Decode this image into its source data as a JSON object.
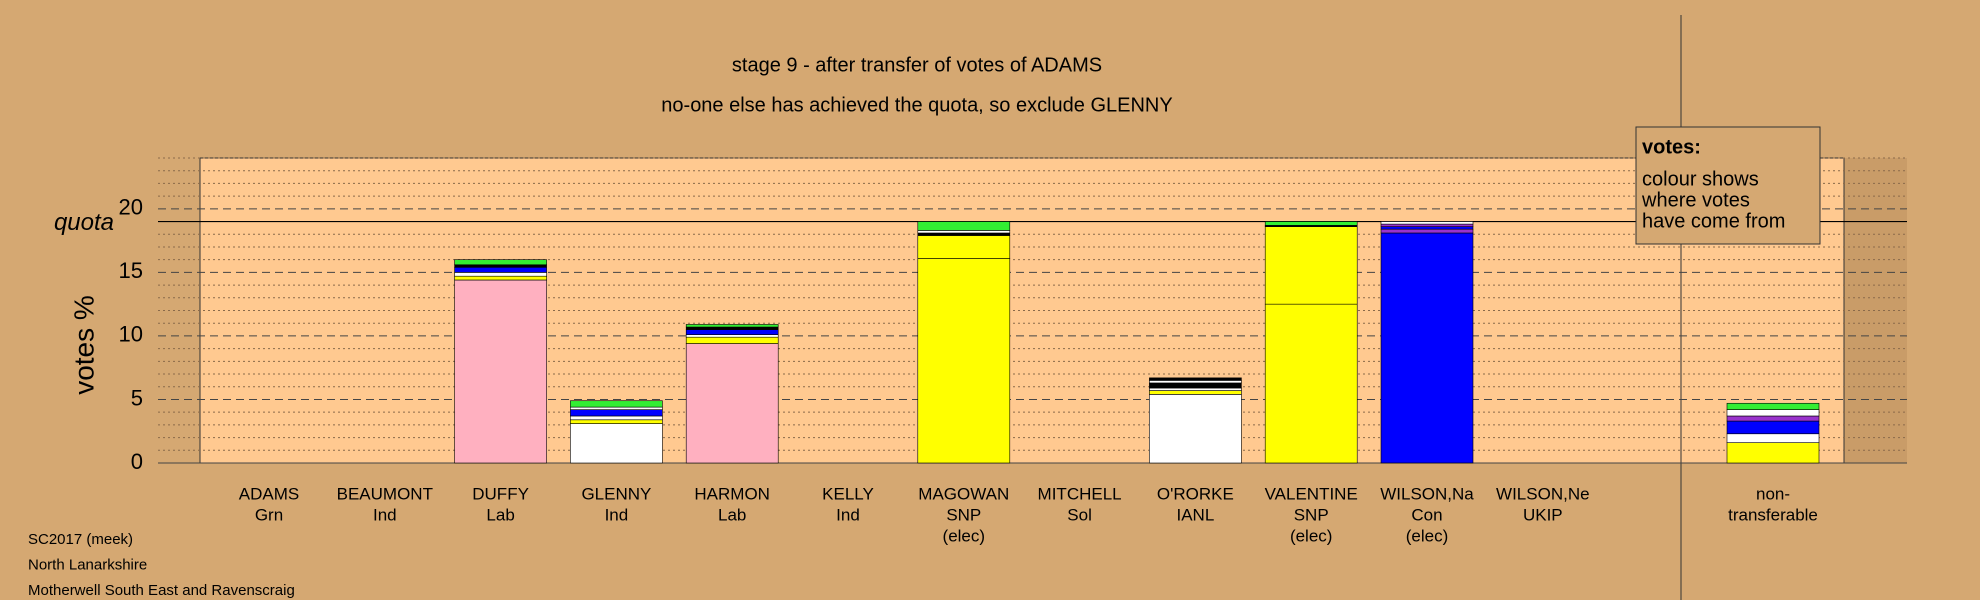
{
  "chart_data": {
    "type": "stacked-bar",
    "title": "stage 9 - after transfer of votes of ADAMS",
    "subtitle": "no-one else has achieved the quota, so exclude GLENNY",
    "y_label": "votes %",
    "quota_label": "quota",
    "quota": 19.0,
    "ylim": [
      0,
      24
    ],
    "yticks": [
      0,
      5,
      10,
      15,
      20
    ],
    "minor_yticks": [
      1,
      2,
      3,
      4,
      6,
      7,
      8,
      9,
      11,
      12,
      13,
      14,
      16,
      17,
      18,
      19,
      21,
      22,
      23,
      24
    ],
    "categories": [
      [
        "ADAMS",
        "Grn"
      ],
      [
        "BEAUMONT",
        "Ind"
      ],
      [
        "DUFFY",
        "Lab"
      ],
      [
        "GLENNY",
        "Ind"
      ],
      [
        "HARMON",
        "Lab"
      ],
      [
        "KELLY",
        "Ind"
      ],
      [
        "MAGOWAN",
        "SNP",
        "(elec)"
      ],
      [
        "MITCHELL",
        "Sol"
      ],
      [
        "O'RORKE",
        "IANL"
      ],
      [
        "VALENTINE",
        "SNP",
        "(elec)"
      ],
      [
        "WILSON,Na",
        "Con",
        "(elec)"
      ],
      [
        "WILSON,Ne",
        "UKIP"
      ]
    ],
    "stacks": [
      [],
      [],
      [
        {
          "value": 14.4,
          "color": "#ffb0c0"
        },
        {
          "value": 0.3,
          "color": "#ffff00"
        },
        {
          "value": 0.3,
          "color": "#ffffff"
        },
        {
          "value": 0.4,
          "color": "#0000ff"
        },
        {
          "value": 0.2,
          "color": "#000000"
        },
        {
          "value": 0.4,
          "color": "#33ee33"
        }
      ],
      [
        {
          "value": 3.1,
          "color": "#ffffff"
        },
        {
          "value": 0.3,
          "color": "#ffff00"
        },
        {
          "value": 0.3,
          "color": "#ffffff"
        },
        {
          "value": 0.5,
          "color": "#0000ff"
        },
        {
          "value": 0.2,
          "color": "#ffffff"
        },
        {
          "value": 0.5,
          "color": "#33ee33"
        }
      ],
      [
        {
          "value": 9.4,
          "color": "#ffb0c0"
        },
        {
          "value": 0.5,
          "color": "#ffff00"
        },
        {
          "value": 0.2,
          "color": "#ffffff"
        },
        {
          "value": 0.4,
          "color": "#0000ff"
        },
        {
          "value": 0.2,
          "color": "#000000"
        },
        {
          "value": 0.2,
          "color": "#33ee33"
        }
      ],
      [],
      [
        {
          "value": 16.1,
          "color": "#ffff00"
        },
        {
          "value": 1.8,
          "color": "#ffff00"
        },
        {
          "value": 0.2,
          "color": "#000000"
        },
        {
          "value": 0.2,
          "color": "#ffffff"
        },
        {
          "value": 0.7,
          "color": "#33ee33"
        }
      ],
      [],
      [
        {
          "value": 5.4,
          "color": "#ffffff"
        },
        {
          "value": 0.3,
          "color": "#ffff00"
        },
        {
          "value": 0.2,
          "color": "#ffffff"
        },
        {
          "value": 0.4,
          "color": "#000000"
        },
        {
          "value": 0.2,
          "color": "#ffffff"
        },
        {
          "value": 0.2,
          "color": "#000000"
        }
      ],
      [
        {
          "value": 12.5,
          "color": "#ffff00"
        },
        {
          "value": 6.1,
          "color": "#ffff00"
        },
        {
          "value": 0.1,
          "color": "#000000"
        },
        {
          "value": 0.3,
          "color": "#33ee33"
        }
      ],
      [
        {
          "value": 18.1,
          "color": "#0000ff"
        },
        {
          "value": 0.3,
          "color": "#9933cc"
        },
        {
          "value": 0.2,
          "color": "#0000ff"
        },
        {
          "value": 0.2,
          "color": "#9933cc"
        },
        {
          "value": 0.2,
          "color": "#ffffff"
        }
      ],
      []
    ],
    "nontransferable": {
      "label": [
        "non-",
        "transferable"
      ],
      "stack": [
        {
          "value": 1.6,
          "color": "#ffff00"
        },
        {
          "value": 0.7,
          "color": "#ffffff"
        },
        {
          "value": 1.0,
          "color": "#0000ff"
        },
        {
          "value": 0.4,
          "color": "#9933cc"
        },
        {
          "value": 0.5,
          "color": "#ffffff"
        },
        {
          "value": 0.5,
          "color": "#33ee33"
        }
      ]
    },
    "legend": {
      "title": "votes:",
      "lines": [
        "colour shows",
        "where votes",
        "have come from"
      ]
    },
    "footer": [
      "SC2017 (meek)",
      "North Lanarkshire",
      "Motherwell South East and Ravenscraig"
    ]
  }
}
